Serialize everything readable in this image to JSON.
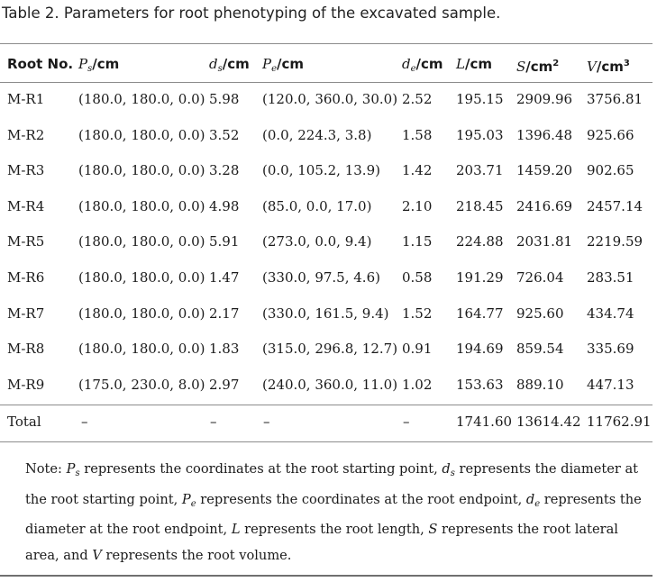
{
  "caption": "Table 2. Parameters for root phenotyping of the excavated sample.",
  "headers": {
    "root_no": "Root No.",
    "ps_var": "P",
    "ps_sub": "s",
    "ps_unit": "/cm",
    "ds_var": "d",
    "ds_sub": "s",
    "ds_unit": "/cm",
    "pe_var": "P",
    "pe_sub": "e",
    "pe_unit": "/cm",
    "de_var": "d",
    "de_sub": "e",
    "de_unit": "/cm",
    "l_var": "L",
    "l_unit": "/cm",
    "s_var": "S",
    "s_unit": "/cm",
    "s_exp": "2",
    "v_var": "V",
    "v_unit": "/cm",
    "v_exp": "3"
  },
  "rows": [
    {
      "id": "M-R1",
      "ps": "(180.0, 180.0, 0.0)",
      "ds": "5.98",
      "pe": "(120.0, 360.0, 30.0)",
      "de": "2.52",
      "l": "195.15",
      "s": "2909.96",
      "v": "3756.81"
    },
    {
      "id": "M-R2",
      "ps": "(180.0, 180.0, 0.0)",
      "ds": "3.52",
      "pe": "(0.0, 224.3, 3.8)",
      "de": "1.58",
      "l": "195.03",
      "s": "1396.48",
      "v": "925.66"
    },
    {
      "id": "M-R3",
      "ps": "(180.0, 180.0, 0.0)",
      "ds": "3.28",
      "pe": "(0.0, 105.2, 13.9)",
      "de": "1.42",
      "l": "203.71",
      "s": "1459.20",
      "v": "902.65"
    },
    {
      "id": "M-R4",
      "ps": "(180.0, 180.0, 0.0)",
      "ds": "4.98",
      "pe": "(85.0, 0.0, 17.0)",
      "de": "2.10",
      "l": "218.45",
      "s": "2416.69",
      "v": "2457.14"
    },
    {
      "id": "M-R5",
      "ps": "(180.0, 180.0, 0.0)",
      "ds": "5.91",
      "pe": "(273.0, 0.0, 9.4)",
      "de": "1.15",
      "l": "224.88",
      "s": "2031.81",
      "v": "2219.59"
    },
    {
      "id": "M-R6",
      "ps": "(180.0, 180.0, 0.0)",
      "ds": "1.47",
      "pe": "(330.0, 97.5, 4.6)",
      "de": "0.58",
      "l": "191.29",
      "s": "726.04",
      "v": "283.51"
    },
    {
      "id": "M-R7",
      "ps": "(180.0, 180.0, 0.0)",
      "ds": "2.17",
      "pe": "(330.0, 161.5, 9.4)",
      "de": "1.52",
      "l": "164.77",
      "s": "925.60",
      "v": "434.74"
    },
    {
      "id": "M-R8",
      "ps": "(180.0, 180.0, 0.0)",
      "ds": "1.83",
      "pe": "(315.0, 296.8, 12.7)",
      "de": "0.91",
      "l": "194.69",
      "s": "859.54",
      "v": "335.69"
    },
    {
      "id": "M-R9",
      "ps": "(175.0, 230.0, 8.0)",
      "ds": "2.97",
      "pe": "(240.0, 360.0, 11.0)",
      "de": "1.02",
      "l": "153.63",
      "s": "889.10",
      "v": "447.13"
    }
  ],
  "total": {
    "id": "Total",
    "ps": "–",
    "ds": "–",
    "pe": "–",
    "de": "–",
    "l": "1741.60",
    "s": "13614.42",
    "v": "11762.91"
  },
  "note": {
    "lead": "Note: ",
    "p1": " represents the coordinates at the root starting point, ",
    "p2": " represents the diameter at the root starting point, ",
    "p3": " represents the coordinates at the root endpoint, ",
    "p4": " represents the diameter at the root endpoint, ",
    "p5": " represents the root length, ",
    "p6": " represents the root lateral area, and ",
    "p7": " represents the root volume."
  }
}
